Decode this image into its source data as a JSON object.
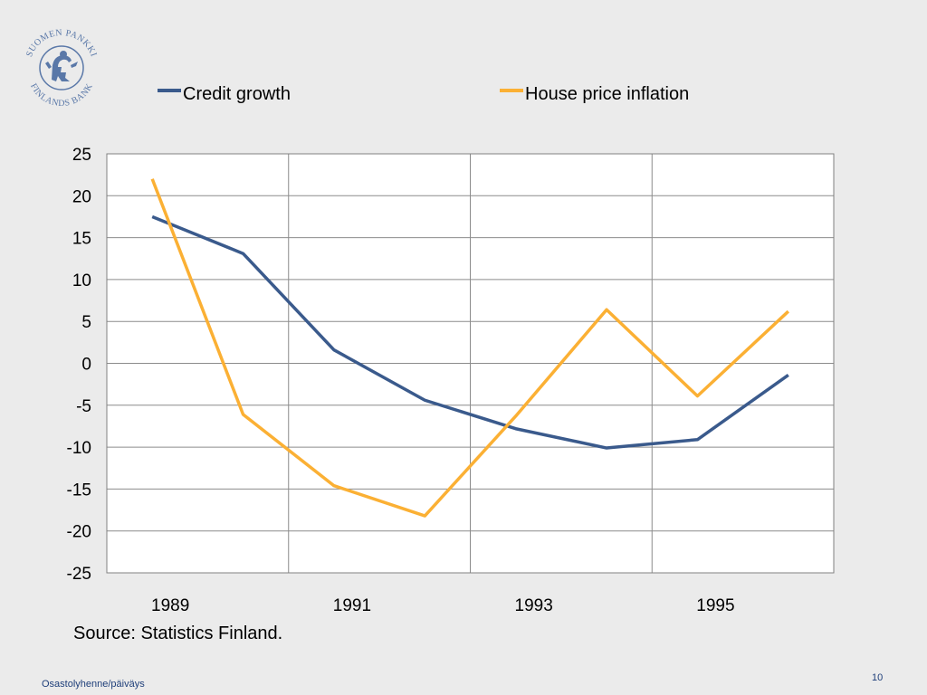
{
  "logo": {
    "text_top": "SUOMEN PANKKI",
    "text_bottom": "FINLANDS BANK",
    "color": "#5a78a8"
  },
  "chart_data": {
    "type": "line",
    "categories": [
      "1989",
      "1990",
      "1991",
      "1992",
      "1993",
      "1994",
      "1995",
      "1996"
    ],
    "x_tick_labels": [
      "1989",
      "1991",
      "1993",
      "1995"
    ],
    "series": [
      {
        "name": "Credit growth",
        "color": "#3a5a8c",
        "values": [
          17.5,
          13.1,
          1.6,
          -4.4,
          -7.8,
          -10.1,
          -9.1,
          -1.4
        ]
      },
      {
        "name": "House price inflation",
        "color": "#fbb034",
        "values": [
          22.0,
          -6.1,
          -14.6,
          -18.2,
          -6.3,
          6.4,
          -3.9,
          6.2
        ]
      }
    ],
    "ylim": [
      -25,
      25
    ],
    "y_ticks": [
      25,
      20,
      15,
      10,
      5,
      0,
      -5,
      -10,
      -15,
      -20,
      -25
    ],
    "grid": true,
    "legend": "top",
    "title": "",
    "xlabel": "",
    "ylabel": ""
  },
  "source": "Source: Statistics Finland.",
  "footer": {
    "left": "Osastolyhenne/päiväys",
    "page_number": "10"
  }
}
